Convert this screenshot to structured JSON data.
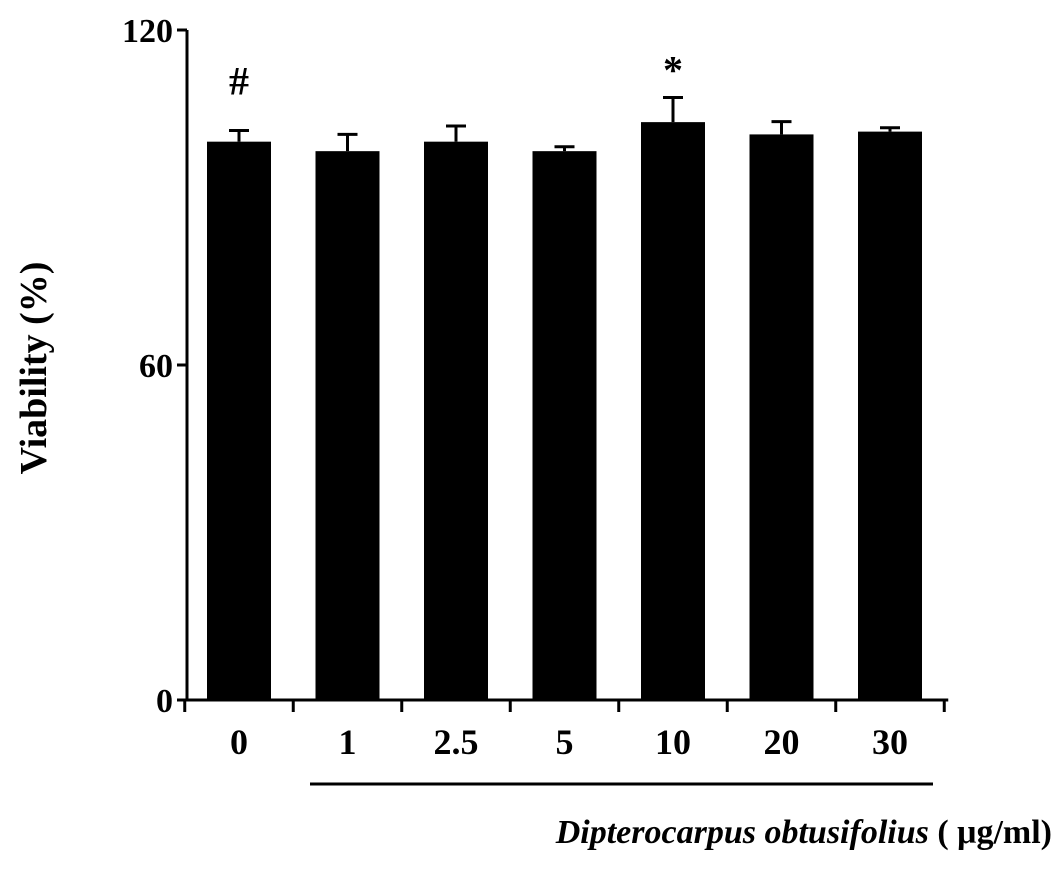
{
  "chart_data": {
    "type": "bar",
    "categories": [
      "0",
      "1",
      "2.5",
      "5",
      "10",
      "20",
      "30"
    ],
    "values": [
      100,
      98.3,
      100,
      98.3,
      103.5,
      101.3,
      101.8
    ],
    "errors": [
      2.0,
      3.0,
      2.8,
      0.8,
      4.4,
      2.3,
      0.7
    ],
    "annotations": [
      "#",
      "",
      "",
      "",
      "*",
      "",
      ""
    ],
    "ylabel": "Viability (%)",
    "xlabel_italic": "Dipterocarpus obtusifolius",
    "xlabel_units": " ( μg/ml)",
    "yticks": [
      0,
      60,
      120
    ],
    "ylim": [
      0,
      120
    ],
    "grid": false,
    "bar_color": "#000000"
  }
}
